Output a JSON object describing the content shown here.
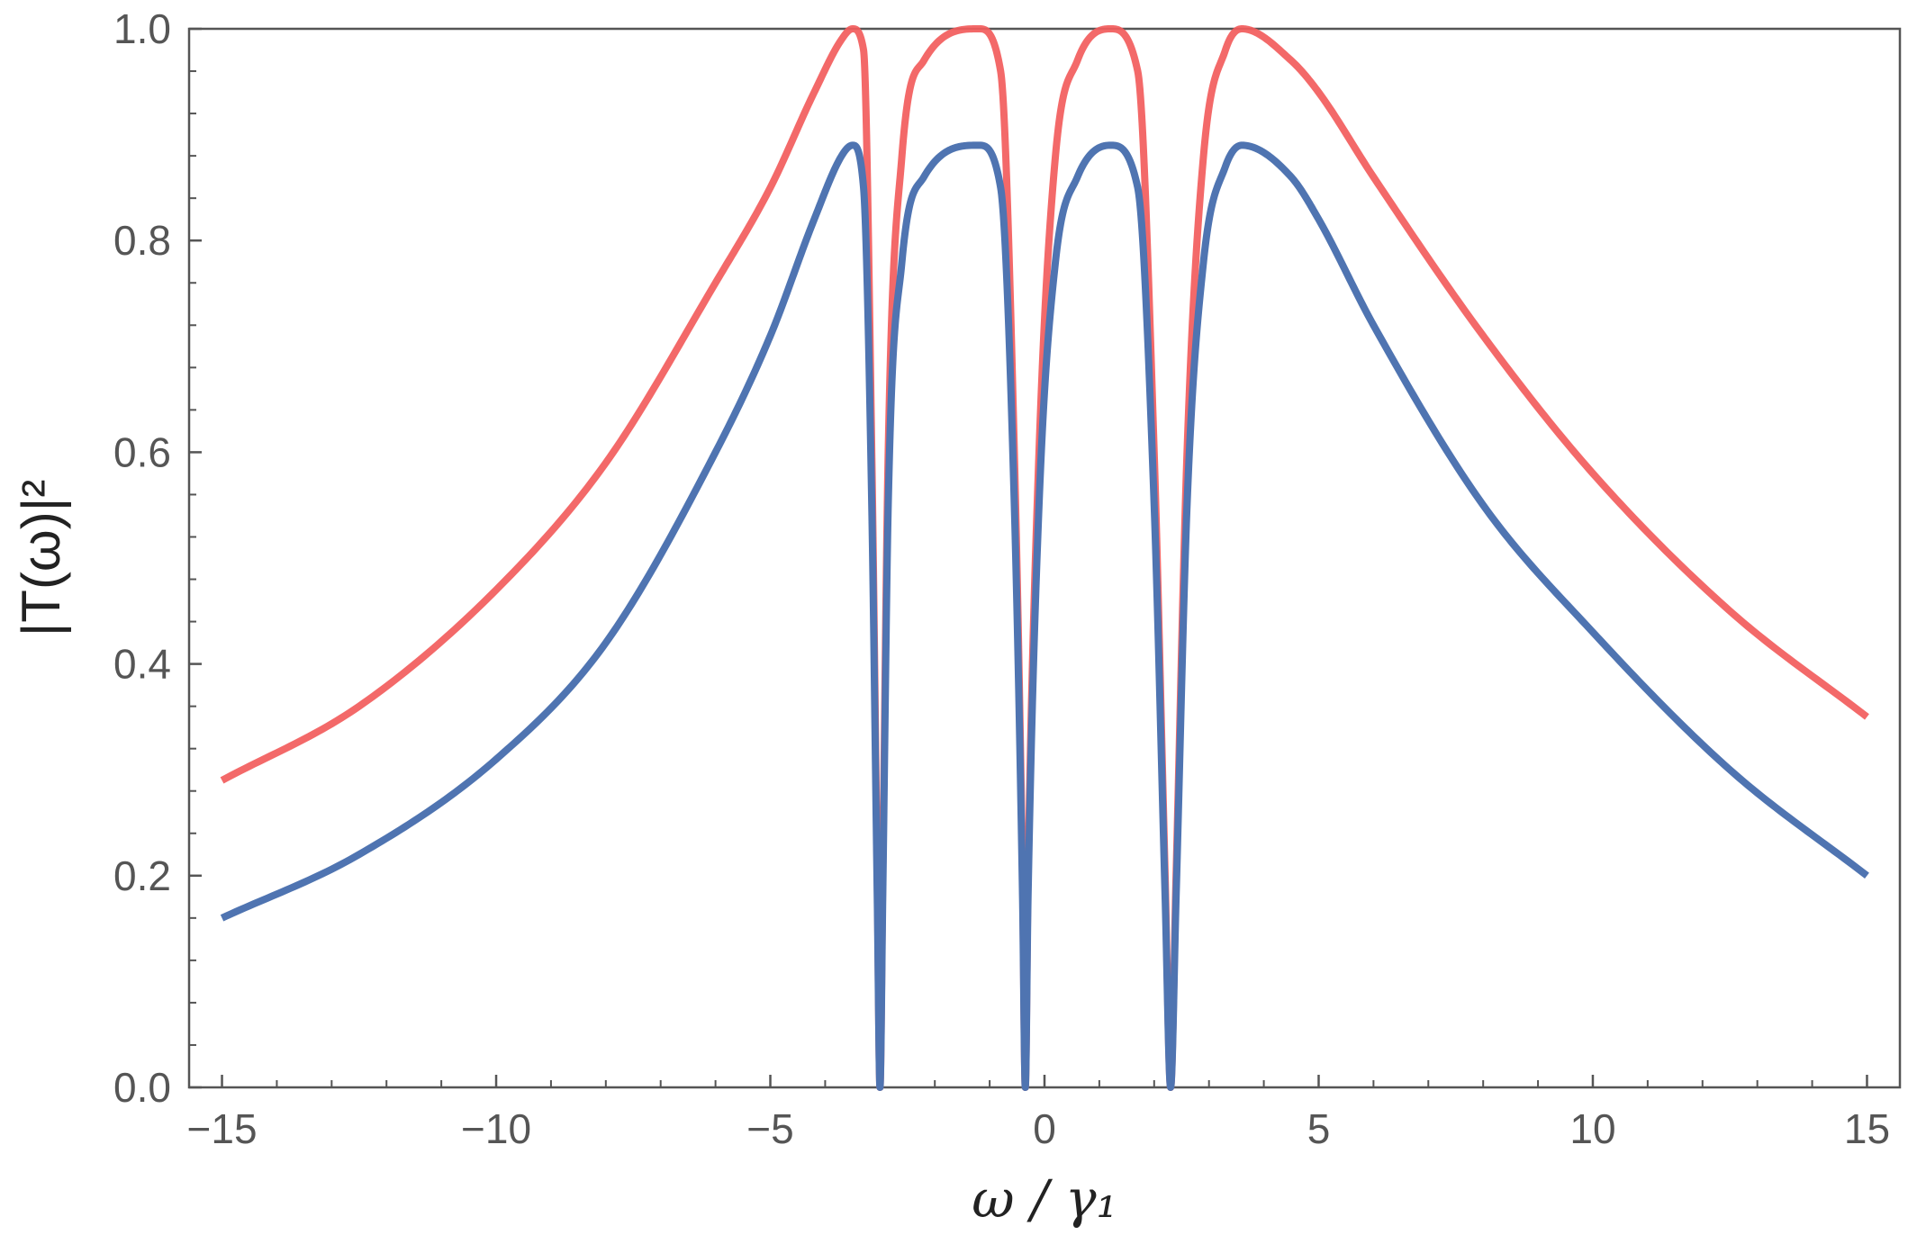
{
  "chart_data": {
    "type": "line",
    "title": "",
    "xlabel": "ω / γ₁",
    "ylabel": "|T(ω)|²",
    "xlim": [
      -15.6,
      15.6
    ],
    "ylim": [
      0,
      1
    ],
    "x_ticks": [
      -15,
      -10,
      -5,
      0,
      5,
      10,
      15
    ],
    "x_tick_labels": [
      "−15",
      "−10",
      "−5",
      "0",
      "5",
      "10",
      "15"
    ],
    "y_ticks": [
      0,
      0.2,
      0.4,
      0.6,
      0.8,
      1.0
    ],
    "y_tick_labels": [
      "0.0",
      "0.2",
      "0.4",
      "0.6",
      "0.8",
      "1.0"
    ],
    "grid": false,
    "series": [
      {
        "color": "#f25c5c",
        "peak": 1.0,
        "points": [
          [
            -15,
            0.29
          ],
          [
            -12.5,
            0.36
          ],
          [
            -10,
            0.47
          ],
          [
            -8,
            0.59
          ],
          [
            -6,
            0.76
          ],
          [
            -5,
            0.85
          ],
          [
            -4.2,
            0.94
          ],
          [
            -3.7,
            0.99
          ],
          [
            -3.5,
            1.0
          ],
          [
            -3.3,
            0.98
          ],
          [
            -3.15,
            0.6
          ],
          [
            -3.05,
            0.2
          ],
          [
            -3.0,
            0.0
          ],
          [
            -2.95,
            0.2
          ],
          [
            -2.85,
            0.6
          ],
          [
            -2.6,
            0.88
          ],
          [
            -2.2,
            0.97
          ],
          [
            -1.2,
            1.0
          ],
          [
            -0.8,
            0.96
          ],
          [
            -0.55,
            0.6
          ],
          [
            -0.4,
            0.2
          ],
          [
            -0.35,
            0.0
          ],
          [
            -0.3,
            0.2
          ],
          [
            -0.1,
            0.6
          ],
          [
            0.2,
            0.88
          ],
          [
            0.6,
            0.97
          ],
          [
            1.2,
            1.0
          ],
          [
            1.7,
            0.96
          ],
          [
            2.0,
            0.6
          ],
          [
            2.2,
            0.2
          ],
          [
            2.3,
            0.0
          ],
          [
            2.4,
            0.2
          ],
          [
            2.6,
            0.6
          ],
          [
            2.9,
            0.88
          ],
          [
            3.3,
            0.98
          ],
          [
            3.6,
            1.0
          ],
          [
            4.5,
            0.97
          ],
          [
            5,
            0.94
          ],
          [
            6,
            0.86
          ],
          [
            8,
            0.71
          ],
          [
            10,
            0.58
          ],
          [
            12.5,
            0.45
          ],
          [
            15,
            0.35
          ]
        ]
      },
      {
        "color": "#4f74b1",
        "peak": 0.89,
        "points": [
          [
            -15,
            0.16
          ],
          [
            -12.5,
            0.22
          ],
          [
            -10,
            0.31
          ],
          [
            -8,
            0.42
          ],
          [
            -6,
            0.6
          ],
          [
            -5,
            0.71
          ],
          [
            -4.2,
            0.82
          ],
          [
            -3.7,
            0.88
          ],
          [
            -3.5,
            0.89
          ],
          [
            -3.3,
            0.85
          ],
          [
            -3.15,
            0.55
          ],
          [
            -3.05,
            0.18
          ],
          [
            -3.0,
            0.0
          ],
          [
            -2.95,
            0.18
          ],
          [
            -2.85,
            0.55
          ],
          [
            -2.6,
            0.78
          ],
          [
            -2.2,
            0.86
          ],
          [
            -1.2,
            0.89
          ],
          [
            -0.8,
            0.85
          ],
          [
            -0.55,
            0.55
          ],
          [
            -0.4,
            0.18
          ],
          [
            -0.35,
            0.0
          ],
          [
            -0.3,
            0.18
          ],
          [
            -0.1,
            0.55
          ],
          [
            0.2,
            0.78
          ],
          [
            0.6,
            0.86
          ],
          [
            1.2,
            0.89
          ],
          [
            1.7,
            0.85
          ],
          [
            2.0,
            0.55
          ],
          [
            2.2,
            0.18
          ],
          [
            2.3,
            0.0
          ],
          [
            2.4,
            0.18
          ],
          [
            2.6,
            0.55
          ],
          [
            2.9,
            0.78
          ],
          [
            3.3,
            0.87
          ],
          [
            3.6,
            0.89
          ],
          [
            4.5,
            0.86
          ],
          [
            5,
            0.82
          ],
          [
            6,
            0.72
          ],
          [
            8,
            0.55
          ],
          [
            10,
            0.43
          ],
          [
            12.5,
            0.3
          ],
          [
            15,
            0.2
          ]
        ]
      }
    ]
  }
}
